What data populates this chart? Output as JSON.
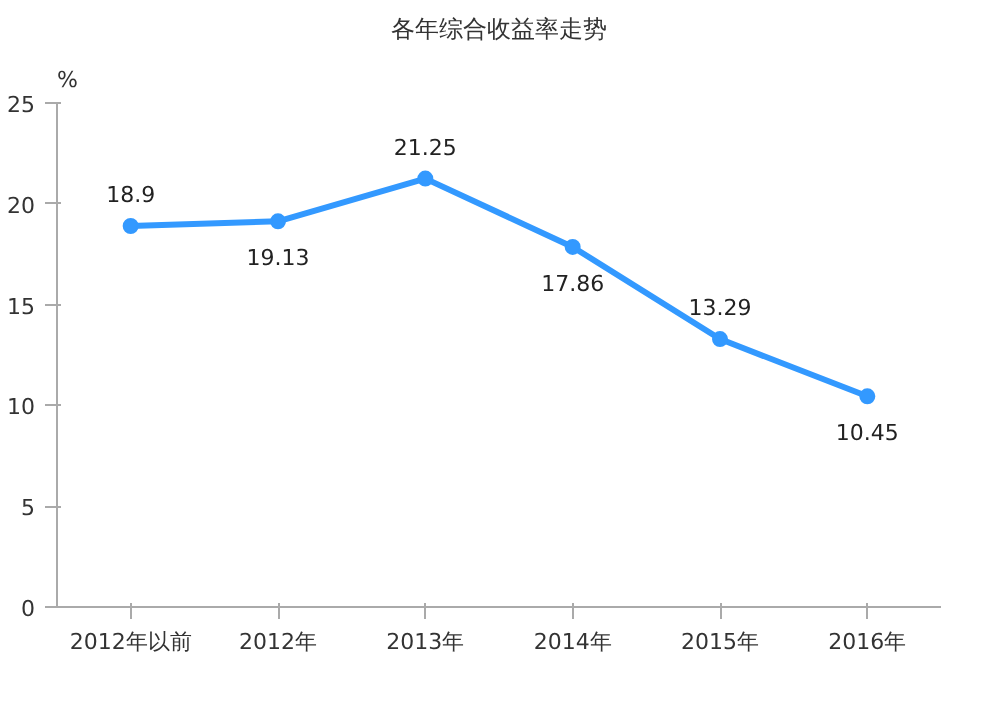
{
  "chart_data": {
    "type": "line",
    "title": "各年综合收益率走势",
    "ylabel": "%",
    "categories": [
      "2012年以前",
      "2012年",
      "2013年",
      "2014年",
      "2015年",
      "2016年"
    ],
    "series": [
      {
        "color": "#3399ff",
        "values": [
          18.9,
          19.13,
          21.25,
          17.86,
          13.29,
          10.45
        ]
      }
    ],
    "ylim": [
      0,
      25
    ],
    "yticks": [
      0,
      5,
      10,
      15,
      20,
      25
    ],
    "marker": "circle",
    "line_style": "solid",
    "data_labels": true,
    "grid": false
  }
}
